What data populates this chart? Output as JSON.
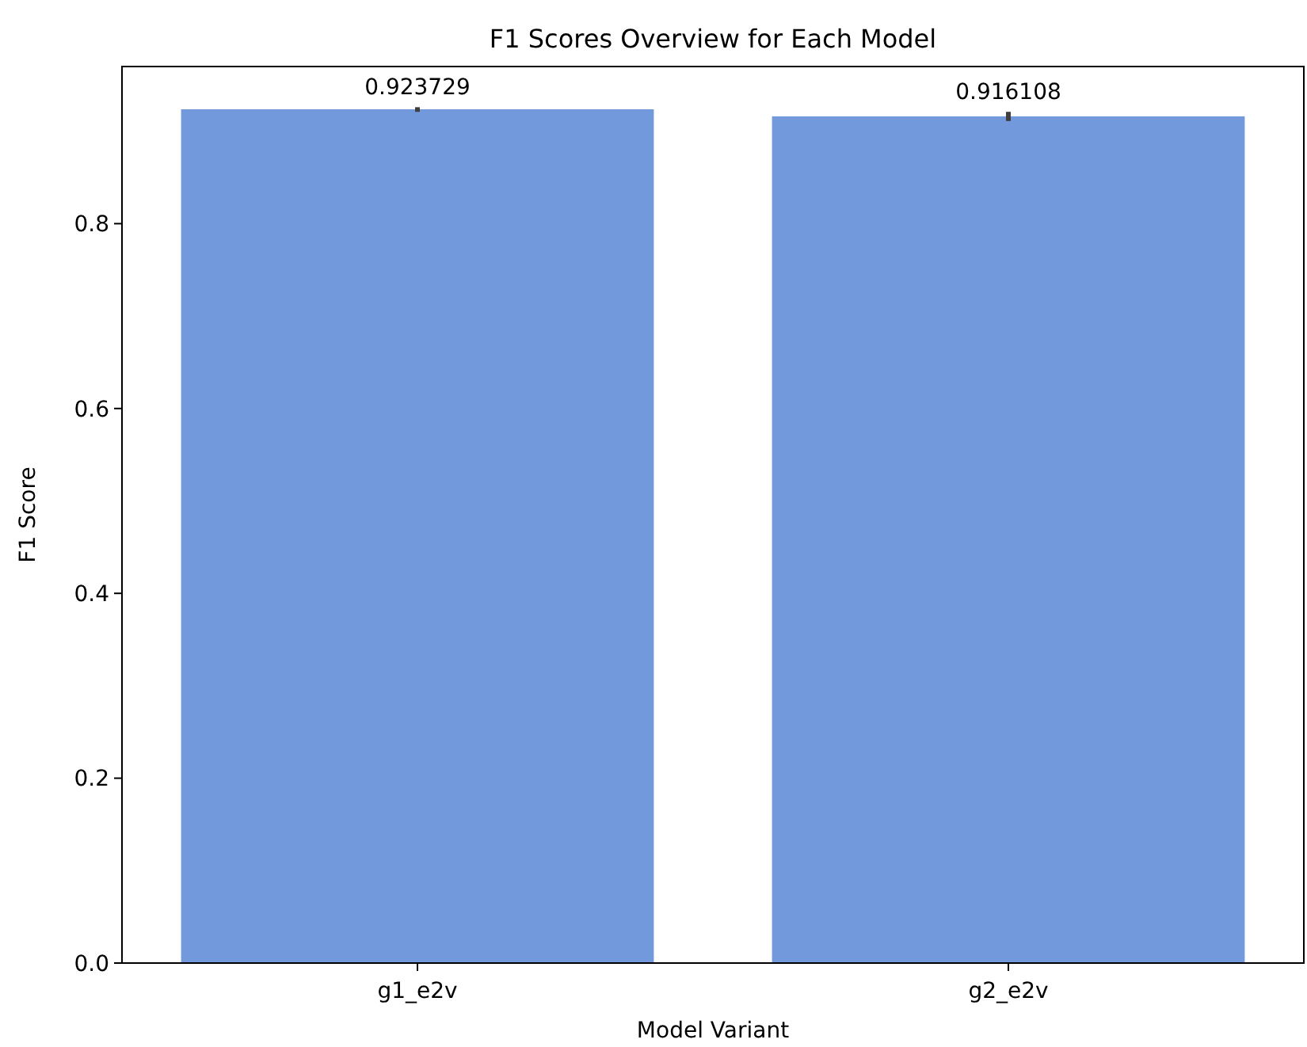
{
  "chart_data": {
    "type": "bar",
    "title": "F1 Scores Overview for Each Model",
    "xlabel": "Model Variant",
    "ylabel": "F1 Score",
    "categories": [
      "g1_e2v",
      "g2_e2v"
    ],
    "values": [
      0.923729,
      0.916108
    ],
    "color": "#7199db",
    "errors": [
      [
        0.921,
        0.926
      ],
      [
        0.911,
        0.921
      ]
    ],
    "data_labels": true,
    "ylim": [
      0,
      0.97
    ],
    "yticks": [
      {
        "value": 0,
        "label": "0.0"
      },
      {
        "value": 0.2,
        "label": "0.2"
      },
      {
        "value": 0.4,
        "label": "0.4"
      },
      {
        "value": 0.6,
        "label": "0.6"
      },
      {
        "value": 0.8,
        "label": "0.8"
      }
    ],
    "grid": false
  }
}
